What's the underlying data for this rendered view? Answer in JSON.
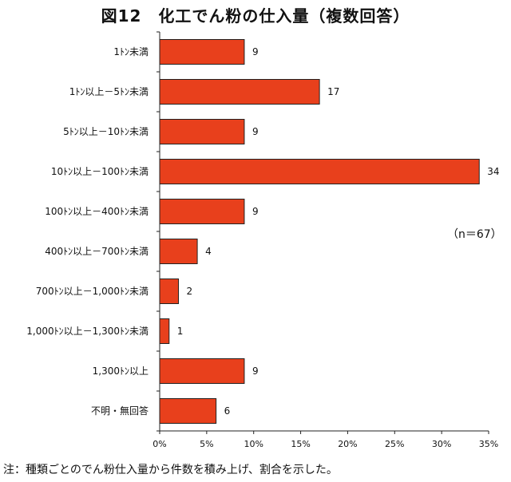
{
  "title": "図12　化工でん粉の仕入量（複数回答）",
  "note": "注：種類ごとのでん粉仕入量から件数を積み上げ、割合を示した。",
  "chart_data": {
    "type": "bar",
    "orientation": "horizontal",
    "sample_size_label": "（n＝67）",
    "categories": [
      "1ﾄﾝ未満",
      "1ﾄﾝ以上－5ﾄﾝ未満",
      "5ﾄﾝ以上－10ﾄﾝ未満",
      "10ﾄﾝ以上－100ﾄﾝ未満",
      "100ﾄﾝ以上－400ﾄﾝ未満",
      "400ﾄﾝ以上－700ﾄﾝ未満",
      "700ﾄﾝ以上－1,000ﾄﾝ未満",
      "1,000ﾄﾝ以上－1,300ﾄﾝ未満",
      "1,300ﾄﾝ以上",
      "不明・無回答"
    ],
    "values": [
      9,
      17,
      9,
      34,
      9,
      4,
      2,
      1,
      9,
      6
    ],
    "xlim": [
      0,
      35
    ],
    "xticks": [
      0,
      5,
      10,
      15,
      20,
      25,
      30,
      35
    ],
    "xtick_labels": [
      "0%",
      "5%",
      "10%",
      "15%",
      "20%",
      "25%",
      "30%",
      "35%"
    ],
    "bar_color": "#e8401c",
    "bar_edge_color": "#222222",
    "grid": false,
    "legend": "none"
  }
}
